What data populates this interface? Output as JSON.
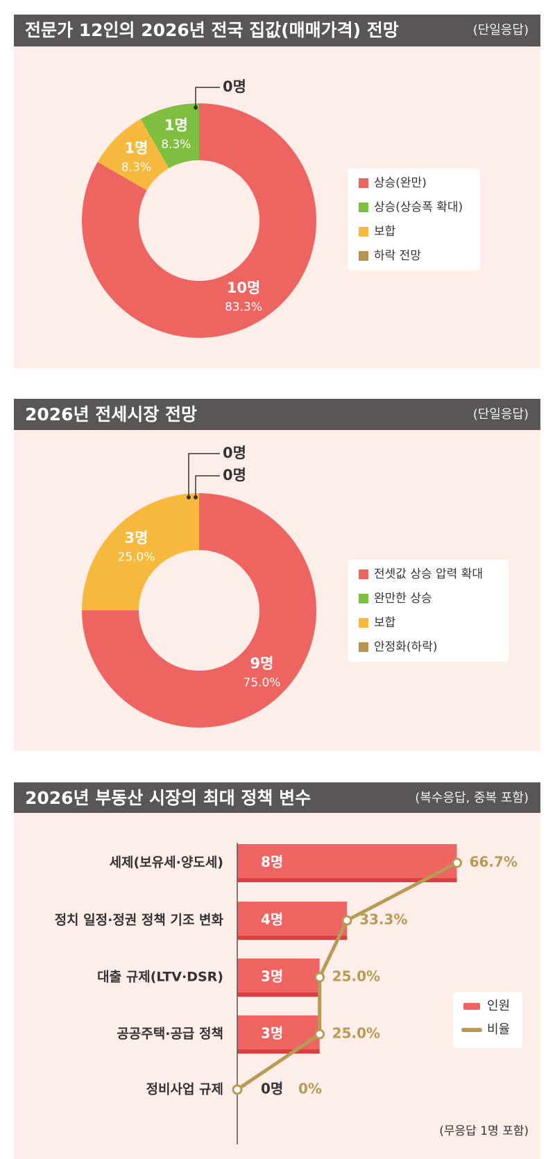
{
  "chart_data": [
    {
      "type": "donut",
      "title": "전문가 12인의 2026년 전국 집값(매매가격) 전망",
      "note": "(단일응답)",
      "categories": [
        "상승(완만)",
        "상승(상승폭 확대)",
        "보합",
        "하락 전망"
      ],
      "values": [
        10,
        1,
        1,
        0
      ],
      "value_labels": [
        "10명",
        "1명",
        "1명",
        "0명"
      ],
      "percents": [
        83.3,
        8.3,
        8.3,
        0
      ],
      "percent_labels": [
        "83.3%",
        "8.3%",
        "8.3%",
        null
      ],
      "colors": [
        "#ee6461",
        "#7fbf3f",
        "#f7b93d",
        "#b8954f"
      ]
    },
    {
      "type": "donut",
      "title": "2026년 전세시장 전망",
      "note": "(단일응답)",
      "categories": [
        "전셋값 상승 압력 확대",
        "완만한 상승",
        "보합",
        "안정화(하락)"
      ],
      "values": [
        9,
        0,
        3,
        0
      ],
      "value_labels": [
        "9명",
        "0명",
        "3명",
        "0명"
      ],
      "percents": [
        75.0,
        0,
        25.0,
        0
      ],
      "percent_labels": [
        "75.0%",
        null,
        "25.0%",
        null
      ],
      "colors": [
        "#ee6461",
        "#7fbf3f",
        "#f7b93d",
        "#b8954f"
      ]
    },
    {
      "type": "bar_line",
      "title": "2026년 부동산 시장의 최대 정책 변수",
      "note": "(복수응답, 중복 포함)",
      "footnote": "(무응답 1명 포함)",
      "categories": [
        "세제(보유세·양도세)",
        "정치 일정·정권 정책 기조 변화",
        "대출 규제(LTV·DSR)",
        "공공주택·공급 정책",
        "정비사업 규제"
      ],
      "series": [
        {
          "name": "인원",
          "color": "#ee6461",
          "values": [
            8,
            4,
            3,
            3,
            0
          ],
          "value_labels": [
            "8명",
            "4명",
            "3명",
            "3명",
            "0명"
          ]
        },
        {
          "name": "비율",
          "color": "#b89a55",
          "axis": "x2",
          "values": [
            66.7,
            33.3,
            25.0,
            25.0,
            0
          ],
          "value_labels": [
            "66.7%",
            "33.3%",
            "25.0%",
            "25.0%",
            "0%"
          ]
        }
      ],
      "xlim": [
        0,
        9
      ],
      "x2lim": [
        0,
        75
      ]
    }
  ]
}
